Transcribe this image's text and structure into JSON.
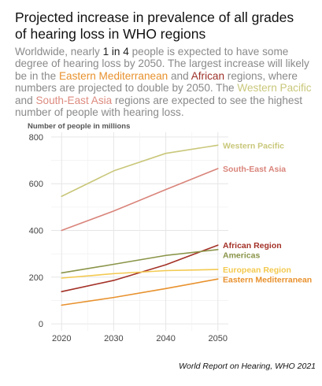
{
  "title": "Projected increase in prevalence of all grades\n of hearing loss in WHO regions",
  "subtitle": {
    "p1": "Worldwide, nearly ",
    "k1": "1 in 4",
    "p2": " people is expected to have some degree of hearing loss by 2050. The largest increase will likely be in the ",
    "emr": "Eastern Mediterranean",
    "p3": " and ",
    "afr": "African",
    "p4": " regions, where numbers are projected to double by 2050. The ",
    "wpr": "Western Pacific",
    "p5": " and ",
    "sear": "South-East Asia",
    "p6": " regions are expected to see the highest number of people with hearing loss."
  },
  "caption": "World Report on Hearing, WHO 2021",
  "chart_data": {
    "type": "line",
    "ylabel": "Number of people in millions",
    "x": [
      2020,
      2030,
      2040,
      2050
    ],
    "xlim": [
      2018,
      2052
    ],
    "ylim": [
      -30,
      820
    ],
    "yticks": [
      0,
      200,
      400,
      600,
      800
    ],
    "grid": true,
    "series": [
      {
        "name": "Western Pacific",
        "color": "#c9c77a",
        "values": [
          546,
          655,
          730,
          765
        ]
      },
      {
        "name": "South-East Asia",
        "color": "#d9847a",
        "values": [
          400,
          483,
          575,
          665
        ]
      },
      {
        "name": "African Region",
        "color": "#a33127",
        "values": [
          138,
          186,
          253,
          337
        ]
      },
      {
        "name": "Americas",
        "color": "#8a9448",
        "values": [
          218,
          255,
          293,
          318
        ]
      },
      {
        "name": "European Region",
        "color": "#f3c94f",
        "values": [
          196,
          215,
          228,
          233
        ]
      },
      {
        "name": "Eastern Mediterranean",
        "color": "#e8912d",
        "values": [
          80,
          113,
          151,
          192
        ]
      }
    ]
  }
}
